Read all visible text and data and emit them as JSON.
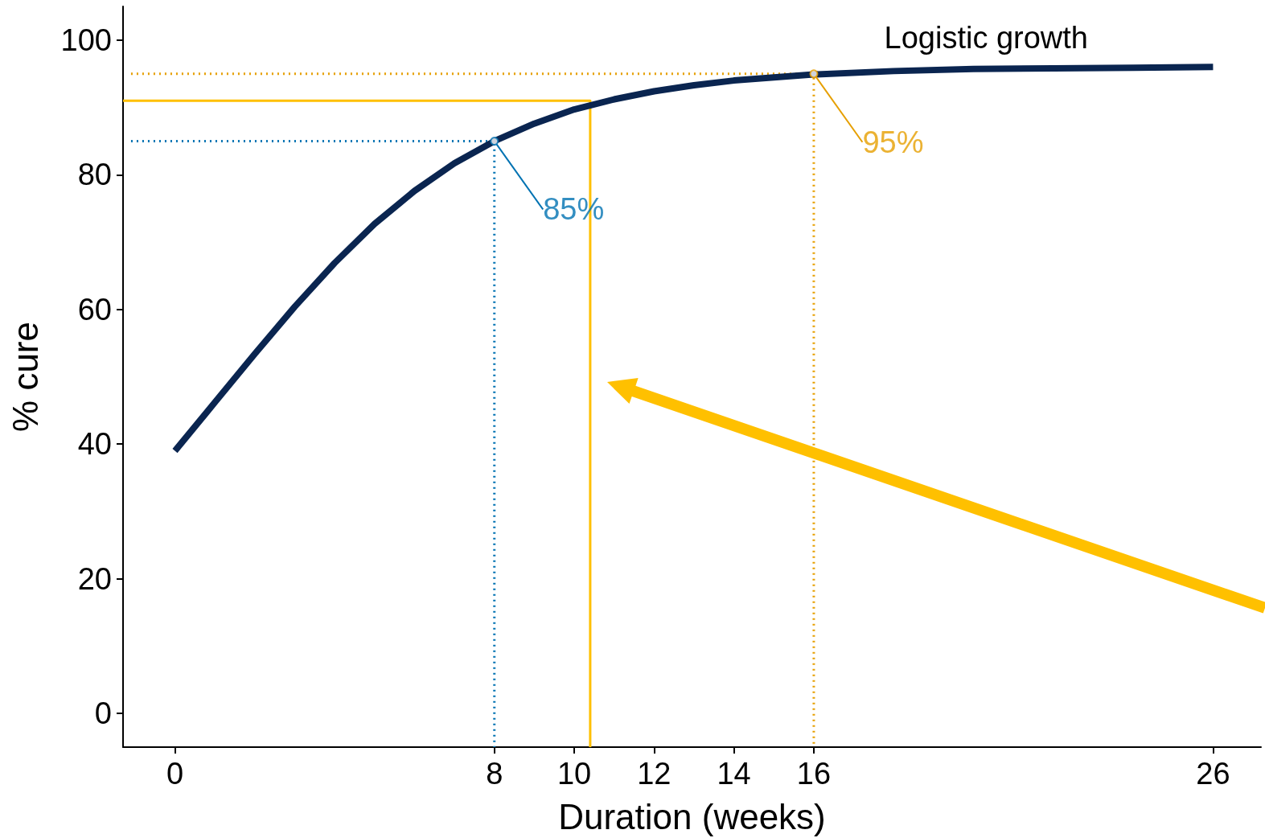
{
  "chart_data": {
    "type": "line",
    "xlabel": "Duration (weeks)",
    "ylabel": "% cure",
    "annotations": [
      "Logistic growth"
    ],
    "xlim": [
      -1.3,
      27.2
    ],
    "ylim": [
      -5,
      105
    ],
    "xticks": [
      0,
      8,
      10,
      12,
      14,
      16,
      26
    ],
    "yticks": [
      0,
      20,
      40,
      60,
      80,
      100
    ],
    "grid": false,
    "series": [
      {
        "color": "#0a2550",
        "x": [
          0,
          1,
          2,
          3,
          4,
          5,
          6,
          7,
          8,
          9,
          10,
          11,
          12,
          13,
          14,
          16,
          18,
          20,
          22,
          24,
          26
        ],
        "values": [
          39,
          46.2,
          53.4,
          60.4,
          66.9,
          72.7,
          77.6,
          81.7,
          85,
          87.6,
          89.7,
          91.2,
          92.4,
          93.3,
          94,
          94.9,
          95.4,
          95.7,
          95.8,
          95.9,
          96
        ],
        "marker": "none",
        "line_style": "solid"
      },
      {
        "color": "#ffc000",
        "x": [
          -1.3,
          10.4,
          10.4
        ],
        "values": [
          91,
          91,
          -5
        ],
        "marker": "none",
        "line_style": "solid"
      },
      {
        "color": "#0072b2",
        "x": [
          -1.1,
          8,
          8
        ],
        "values": [
          85,
          85,
          -5
        ],
        "marker": "none",
        "line_style": "dotted"
      },
      {
        "color": "#e69f00",
        "x": [
          -1.1,
          16,
          16
        ],
        "values": [
          95,
          95,
          -5
        ],
        "marker": "none",
        "line_style": "dotted"
      },
      {
        "type": "scatter",
        "color": "#0072b2",
        "x": [
          8
        ],
        "values": [
          85
        ],
        "marker": "circle",
        "value_labels": [
          "85%"
        ]
      },
      {
        "type": "scatter",
        "color": "#e69f00",
        "x": [
          16
        ],
        "values": [
          95
        ],
        "marker": "circle",
        "value_labels": [
          "95%"
        ]
      }
    ]
  }
}
